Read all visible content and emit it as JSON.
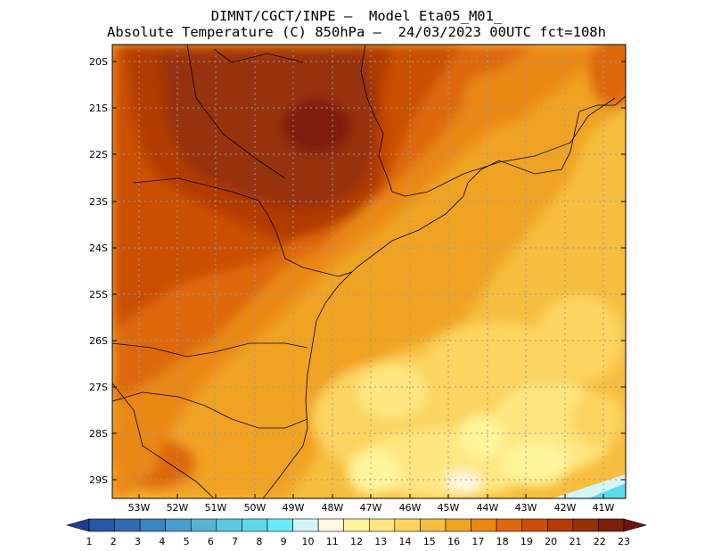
{
  "title": {
    "line1": "DIMNT/CGCT/INPE –  Model Eta05_M01_",
    "line2": "Absolute Temperature (C) 850hPa –  24/03/2023 00UTC fct=108h"
  },
  "map": {
    "lat_labels": [
      "20S",
      "21S",
      "22S",
      "23S",
      "24S",
      "25S",
      "26S",
      "27S",
      "28S",
      "29S"
    ],
    "lon_labels": [
      "53W",
      "52W",
      "51W",
      "50W",
      "49W",
      "48W",
      "47W",
      "46W",
      "45W",
      "44W",
      "43W",
      "42W",
      "41W"
    ]
  },
  "colorbar": {
    "labels": [
      "1",
      "2",
      "3",
      "4",
      "5",
      "6",
      "7",
      "8",
      "9",
      "10",
      "11",
      "12",
      "13",
      "14",
      "15",
      "16",
      "17",
      "18",
      "19",
      "20",
      "21",
      "22",
      "23"
    ],
    "colors": [
      "#1f3f91",
      "#2557a3",
      "#2e6db2",
      "#3a84c0",
      "#4a9ccc",
      "#58b2d6",
      "#5cc7e0",
      "#5dd9ea",
      "#66ecf7",
      "#d2f7fb",
      "#fff7e0",
      "#fff59a",
      "#ffe680",
      "#fcd45e",
      "#f6bd3e",
      "#f0a320",
      "#ea8812",
      "#de690a",
      "#ca4f06",
      "#b23b06",
      "#963007",
      "#7f1f08",
      "#6b1414"
    ]
  }
}
